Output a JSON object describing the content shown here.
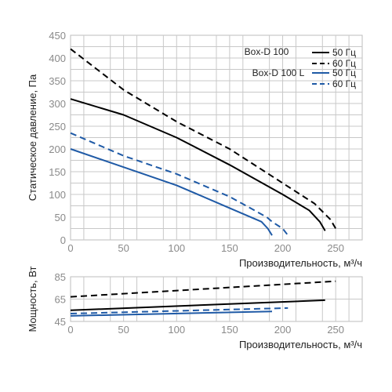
{
  "chart_data": [
    {
      "type": "line",
      "title": "",
      "xlabel": "Производительность, м³/ч",
      "ylabel": "Статическое давление, Па",
      "xlim": [
        0,
        275
      ],
      "ylim": [
        0,
        450
      ],
      "x_ticks": [
        "0",
        "50",
        "100",
        "150",
        "200",
        "250"
      ],
      "y_ticks": [
        "0",
        "50",
        "100",
        "150",
        "200",
        "250",
        "300",
        "350",
        "400",
        "450"
      ],
      "grid": true,
      "legend_position": "top-right",
      "legend": {
        "groups": [
          {
            "model": "Box-D 100",
            "entries": [
              "50 Гц",
              "60 Гц"
            ]
          },
          {
            "model": "Box-D 100 L",
            "entries": [
              "50 Гц",
              "60 Гц"
            ]
          }
        ]
      },
      "series": [
        {
          "name": "Box-D 100 50 Гц",
          "color": "#000000",
          "dash": "solid",
          "x": [
            0,
            50,
            100,
            150,
            200,
            225,
            235,
            240
          ],
          "y": [
            310,
            275,
            225,
            165,
            100,
            65,
            40,
            20
          ]
        },
        {
          "name": "Box-D 100 60 Гц",
          "color": "#000000",
          "dash": "dashed",
          "x": [
            0,
            50,
            100,
            150,
            200,
            230,
            245,
            250
          ],
          "y": [
            420,
            330,
            260,
            200,
            125,
            80,
            45,
            25
          ]
        },
        {
          "name": "Box-D 100 L 50 Гц",
          "color": "#1f5aa6",
          "dash": "solid",
          "x": [
            0,
            50,
            100,
            150,
            180,
            186,
            190
          ],
          "y": [
            200,
            160,
            120,
            70,
            40,
            25,
            10
          ]
        },
        {
          "name": "Box-D 100 L 60 Гц",
          "color": "#1f5aa6",
          "dash": "dashed",
          "x": [
            0,
            50,
            100,
            150,
            185,
            190,
            200,
            205
          ],
          "y": [
            235,
            185,
            145,
            95,
            50,
            40,
            25,
            10
          ]
        }
      ]
    },
    {
      "type": "line",
      "title": "",
      "xlabel": "Производительность, м³/ч",
      "ylabel": "Мощность, Вт",
      "xlim": [
        0,
        275
      ],
      "ylim": [
        45,
        85
      ],
      "x_ticks": [
        "0",
        "50",
        "100",
        "150",
        "200",
        "250"
      ],
      "y_ticks": [
        "45",
        "65",
        "85"
      ],
      "grid": true,
      "series": [
        {
          "color": "#000000",
          "dash": "dashed",
          "x": [
            0,
            250
          ],
          "y": [
            67,
            81
          ]
        },
        {
          "color": "#000000",
          "dash": "solid",
          "x": [
            0,
            240
          ],
          "y": [
            55,
            64
          ]
        },
        {
          "color": "#1f5aa6",
          "dash": "dashed",
          "x": [
            0,
            205
          ],
          "y": [
            52,
            57
          ]
        },
        {
          "color": "#1f5aa6",
          "dash": "solid",
          "x": [
            0,
            190
          ],
          "y": [
            50,
            54
          ]
        }
      ]
    }
  ]
}
